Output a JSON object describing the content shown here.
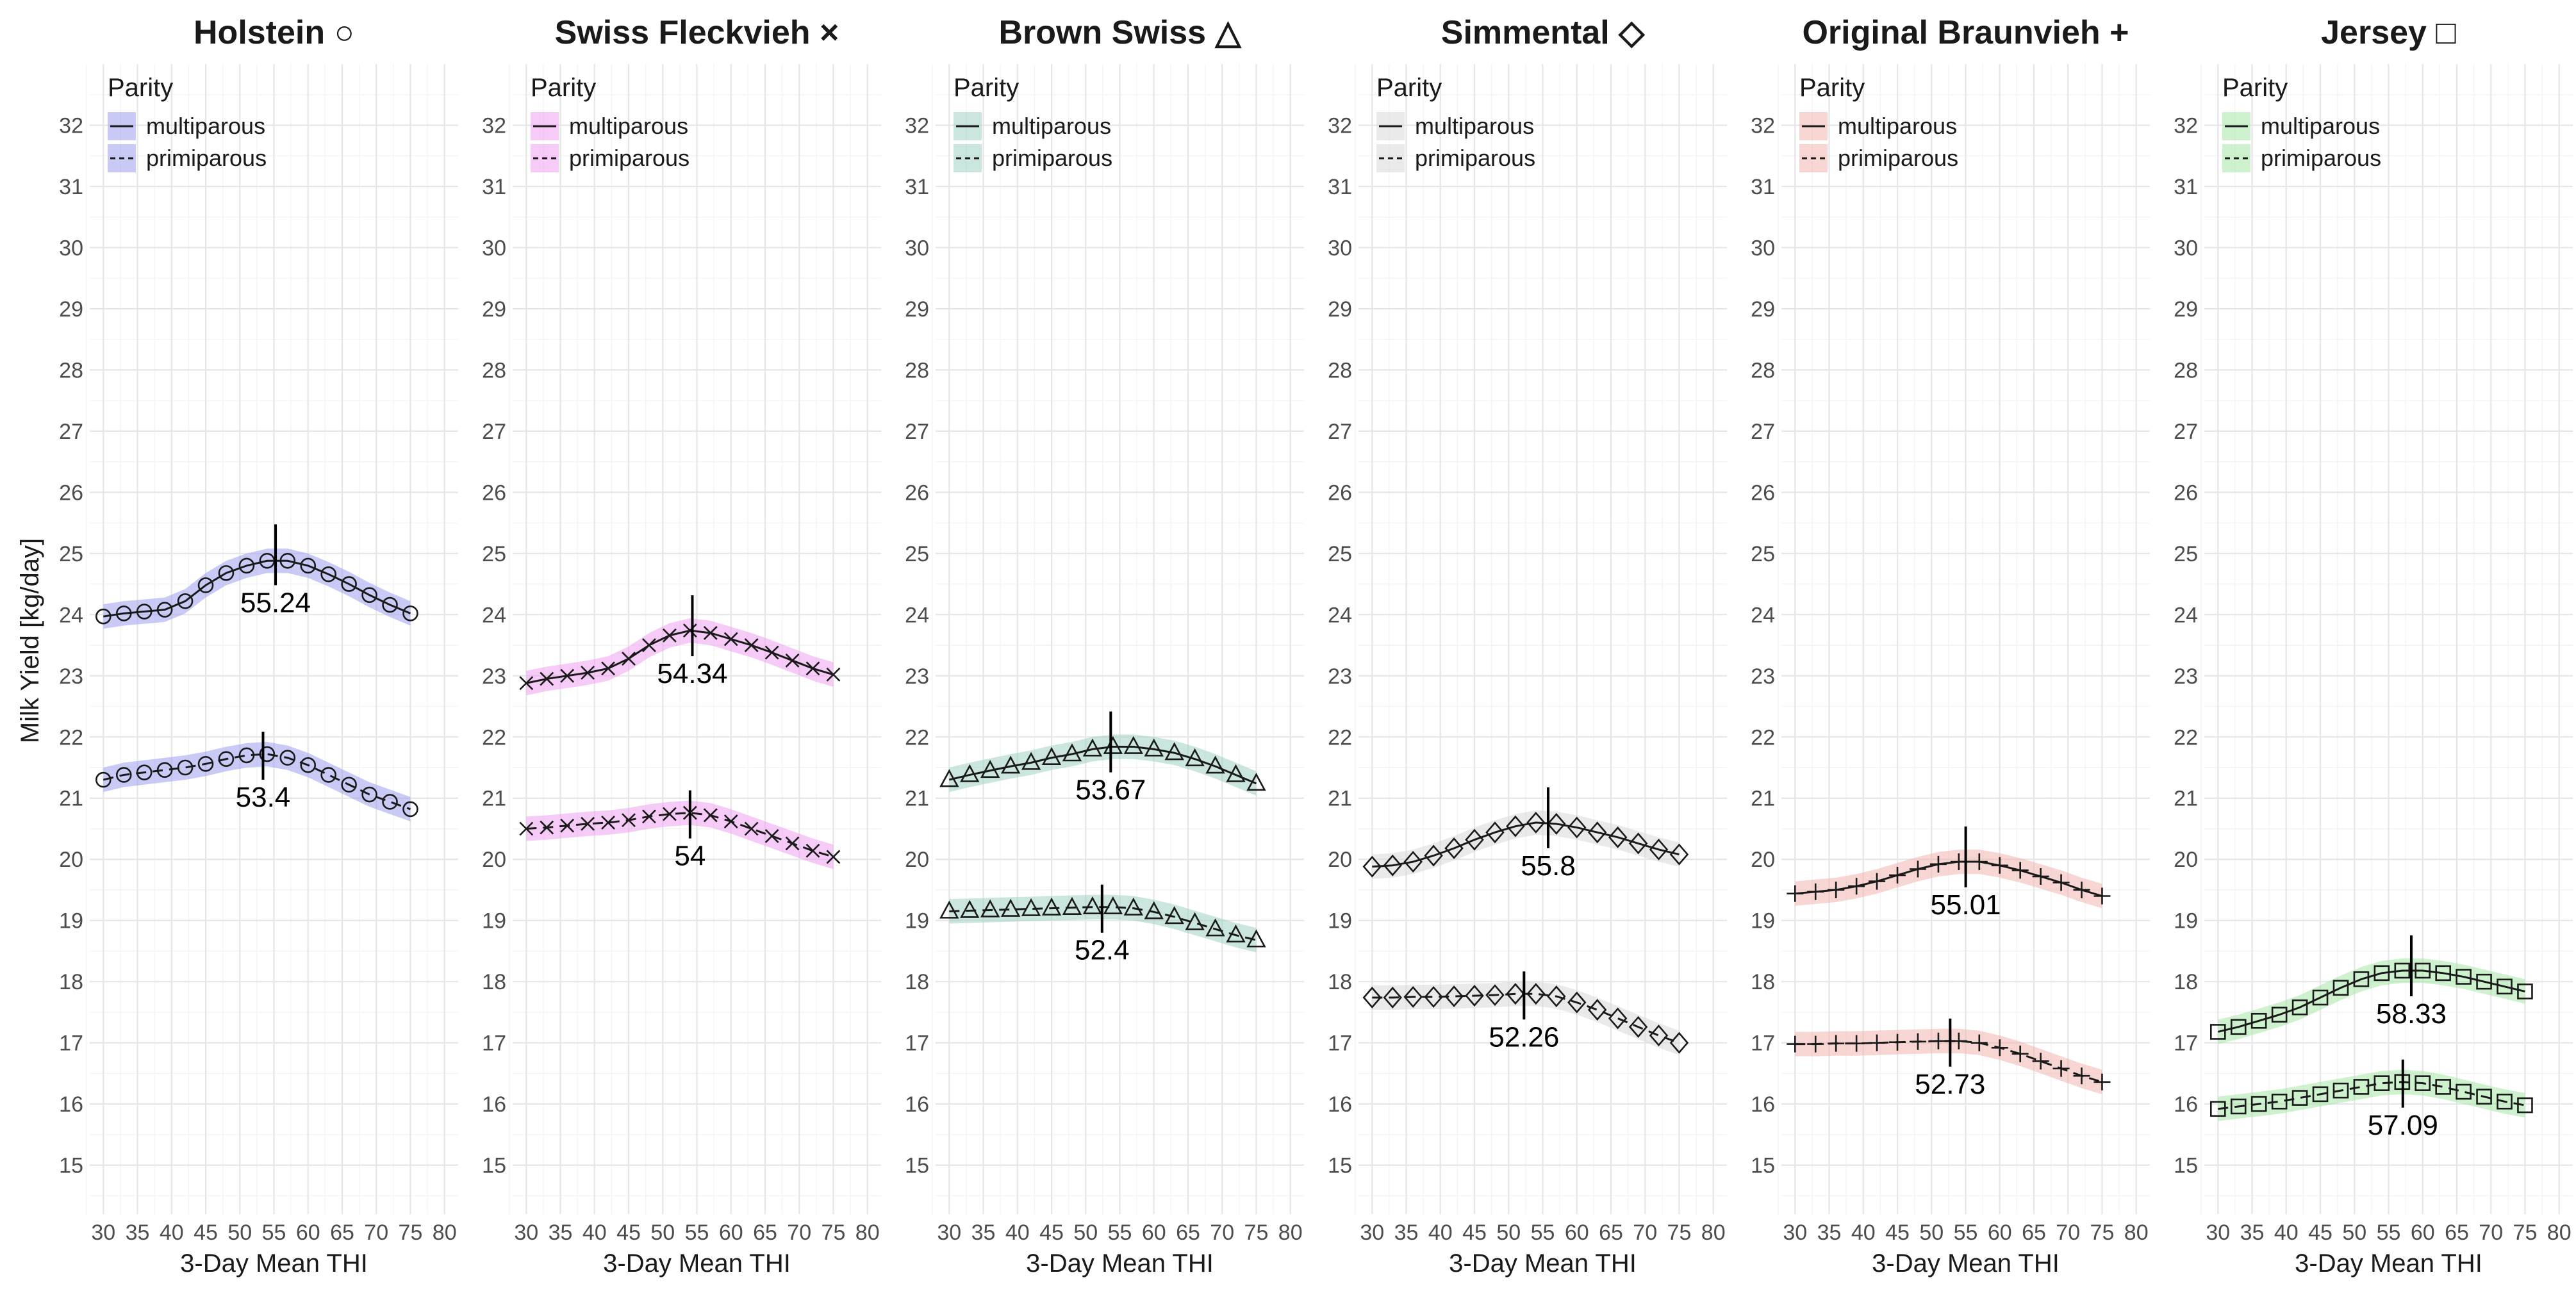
{
  "figure": {
    "ylabel": "Milk Yield [kg/day]",
    "xlabel": "3-Day Mean THI",
    "legend_title": "Parity",
    "legend_labels": [
      "multiparous",
      "primiparous"
    ],
    "ylim": [
      14.2,
      33.0
    ],
    "xlim": [
      28,
      82
    ],
    "yticks": [
      15,
      16,
      17,
      18,
      19,
      20,
      21,
      22,
      23,
      24,
      25,
      26,
      27,
      28,
      29,
      30,
      31,
      32
    ],
    "xticks": [
      30,
      35,
      40,
      45,
      50,
      55,
      60,
      65,
      70,
      75,
      80
    ]
  },
  "chart_data": [
    {
      "type": "line",
      "title": "Holstein",
      "symbol": "circle",
      "symbol_glyph": "○",
      "color": "#9f9ff0",
      "legend_placement": "top-left",
      "x": [
        30,
        33,
        36,
        39,
        42,
        45,
        48,
        51,
        54,
        57,
        60,
        63,
        66,
        69,
        72,
        75
      ],
      "series": [
        {
          "name": "multiparous",
          "dash": "solid",
          "values": [
            23.97,
            24.02,
            24.05,
            24.08,
            24.22,
            24.48,
            24.68,
            24.8,
            24.88,
            24.88,
            24.8,
            24.66,
            24.5,
            24.32,
            24.16,
            24.02
          ],
          "peak_x": 55.24,
          "peak_label": "55.24",
          "peak_y": 24.9
        },
        {
          "name": "primiparous",
          "dash": "dashed",
          "values": [
            21.3,
            21.38,
            21.42,
            21.46,
            21.5,
            21.56,
            21.64,
            21.7,
            21.72,
            21.66,
            21.54,
            21.38,
            21.22,
            21.06,
            20.94,
            20.82
          ],
          "peak_x": 53.4,
          "peak_label": "53.4",
          "peak_y": 21.72
        }
      ]
    },
    {
      "type": "line",
      "title": "Swiss Fleckvieh",
      "symbol": "cross",
      "symbol_glyph": "×",
      "color": "#f0a0f0",
      "legend_placement": "top-left",
      "x": [
        30,
        33,
        36,
        39,
        42,
        45,
        48,
        51,
        54,
        57,
        60,
        63,
        66,
        69,
        72,
        75
      ],
      "series": [
        {
          "name": "multiparous",
          "dash": "solid",
          "values": [
            22.88,
            22.95,
            23.0,
            23.05,
            23.12,
            23.28,
            23.5,
            23.66,
            23.74,
            23.7,
            23.6,
            23.5,
            23.38,
            23.25,
            23.12,
            23.02
          ],
          "peak_x": 54.34,
          "peak_label": "54.34",
          "peak_y": 23.74
        },
        {
          "name": "primiparous",
          "dash": "dashed",
          "values": [
            20.5,
            20.52,
            20.55,
            20.58,
            20.6,
            20.64,
            20.7,
            20.74,
            20.76,
            20.72,
            20.62,
            20.5,
            20.38,
            20.26,
            20.14,
            20.04
          ],
          "peak_x": 54,
          "peak_label": "54",
          "peak_y": 20.76
        }
      ]
    },
    {
      "type": "line",
      "title": "Brown Swiss",
      "symbol": "triangle",
      "symbol_glyph": "△",
      "color": "#9fd2c2",
      "legend_placement": "top-left",
      "x": [
        30,
        33,
        36,
        39,
        42,
        45,
        48,
        51,
        54,
        57,
        60,
        63,
        66,
        69,
        72,
        75
      ],
      "series": [
        {
          "name": "multiparous",
          "dash": "solid",
          "values": [
            21.3,
            21.38,
            21.45,
            21.52,
            21.58,
            21.66,
            21.72,
            21.8,
            21.84,
            21.84,
            21.8,
            21.74,
            21.64,
            21.52,
            21.38,
            21.24
          ],
          "peak_x": 53.67,
          "peak_label": "53.67",
          "peak_y": 21.84
        },
        {
          "name": "primiparous",
          "dash": "dashed",
          "values": [
            19.15,
            19.16,
            19.17,
            19.18,
            19.19,
            19.2,
            19.21,
            19.22,
            19.22,
            19.2,
            19.14,
            19.06,
            18.96,
            18.86,
            18.76,
            18.68
          ],
          "peak_x": 52.4,
          "peak_label": "52.4",
          "peak_y": 19.22
        }
      ]
    },
    {
      "type": "line",
      "title": "Simmental",
      "symbol": "diamond",
      "symbol_glyph": "◇",
      "color": "#d8d8d8",
      "legend_placement": "top-left",
      "x": [
        30,
        33,
        36,
        39,
        42,
        45,
        48,
        51,
        54,
        57,
        60,
        63,
        66,
        69,
        72,
        75
      ],
      "series": [
        {
          "name": "multiparous",
          "dash": "solid",
          "values": [
            19.88,
            19.9,
            19.96,
            20.06,
            20.18,
            20.32,
            20.44,
            20.54,
            20.6,
            20.58,
            20.52,
            20.44,
            20.36,
            20.26,
            20.16,
            20.08
          ],
          "peak_x": 55.8,
          "peak_label": "55.8",
          "peak_y": 20.6
        },
        {
          "name": "primiparous",
          "dash": "dashed",
          "values": [
            17.74,
            17.74,
            17.75,
            17.75,
            17.76,
            17.77,
            17.78,
            17.8,
            17.8,
            17.76,
            17.66,
            17.54,
            17.4,
            17.26,
            17.12,
            17.0
          ],
          "peak_x": 52.26,
          "peak_label": "52.26",
          "peak_y": 17.8
        }
      ]
    },
    {
      "type": "line",
      "title": "Original Braunvieh",
      "symbol": "plus",
      "symbol_glyph": "+",
      "color": "#f0b4ae",
      "legend_placement": "top-left",
      "x": [
        30,
        33,
        36,
        39,
        42,
        45,
        48,
        51,
        54,
        57,
        60,
        63,
        66,
        69,
        72,
        75
      ],
      "series": [
        {
          "name": "multiparous",
          "dash": "solid",
          "values": [
            19.44,
            19.47,
            19.5,
            19.56,
            19.64,
            19.74,
            19.84,
            19.92,
            19.96,
            19.96,
            19.9,
            19.82,
            19.72,
            19.62,
            19.5,
            19.4
          ],
          "peak_x": 55.01,
          "peak_label": "55.01",
          "peak_y": 19.96
        },
        {
          "name": "primiparous",
          "dash": "dashed",
          "values": [
            16.98,
            16.98,
            16.99,
            16.99,
            17.0,
            17.01,
            17.02,
            17.03,
            17.03,
            17.0,
            16.92,
            16.82,
            16.7,
            16.58,
            16.46,
            16.36
          ],
          "peak_x": 52.73,
          "peak_label": "52.73",
          "peak_y": 17.03
        }
      ]
    },
    {
      "type": "line",
      "title": "Jersey",
      "symbol": "square",
      "symbol_glyph": "□",
      "color": "#a6e6a6",
      "legend_placement": "top-left",
      "x": [
        30,
        33,
        36,
        39,
        42,
        45,
        48,
        51,
        54,
        57,
        60,
        63,
        66,
        69,
        72,
        75
      ],
      "series": [
        {
          "name": "multiparous",
          "dash": "solid",
          "values": [
            17.18,
            17.26,
            17.36,
            17.46,
            17.58,
            17.74,
            17.9,
            18.04,
            18.14,
            18.18,
            18.18,
            18.14,
            18.08,
            18.0,
            17.92,
            17.84
          ],
          "peak_x": 58.33,
          "peak_label": "58.33",
          "peak_y": 18.18
        },
        {
          "name": "primiparous",
          "dash": "dashed",
          "values": [
            15.92,
            15.96,
            16.0,
            16.04,
            16.1,
            16.16,
            16.22,
            16.28,
            16.34,
            16.36,
            16.34,
            16.28,
            16.2,
            16.12,
            16.04,
            15.98
          ],
          "peak_x": 57.09,
          "peak_label": "57.09",
          "peak_y": 16.36
        }
      ]
    }
  ]
}
